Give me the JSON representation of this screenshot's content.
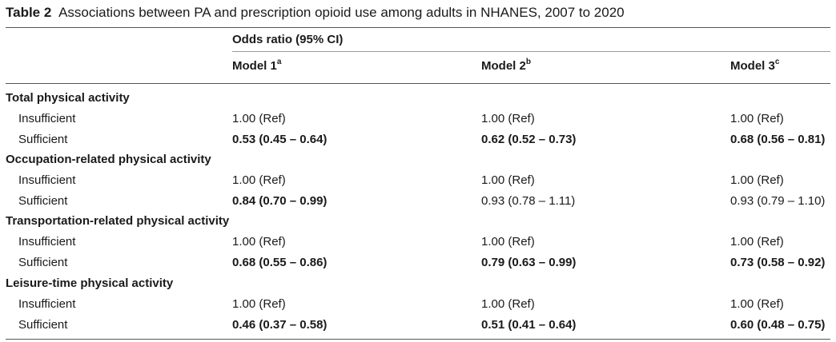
{
  "caption": {
    "label": "Table 2",
    "text": "Associations between PA and prescription opioid use among adults in NHANES, 2007 to 2020"
  },
  "header": {
    "group": "Odds ratio (95% CI)",
    "models": [
      {
        "name": "Model 1",
        "sup": "a"
      },
      {
        "name": "Model 2",
        "sup": "b"
      },
      {
        "name": "Model 3",
        "sup": "c"
      }
    ]
  },
  "sections": [
    {
      "title": "Total physical activity",
      "rows": [
        {
          "label": "Insufficient",
          "values": [
            "1.00 (Ref)",
            "1.00 (Ref)",
            "1.00 (Ref)"
          ],
          "bold": [
            false,
            false,
            false
          ]
        },
        {
          "label": "Sufficient",
          "values": [
            "0.53 (0.45 – 0.64)",
            "0.62 (0.52 – 0.73)",
            "0.68 (0.56 – 0.81)"
          ],
          "bold": [
            true,
            true,
            true
          ]
        }
      ]
    },
    {
      "title": "Occupation-related physical activity",
      "rows": [
        {
          "label": "Insufficient",
          "values": [
            "1.00 (Ref)",
            "1.00 (Ref)",
            "1.00 (Ref)"
          ],
          "bold": [
            false,
            false,
            false
          ]
        },
        {
          "label": "Sufficient",
          "values": [
            "0.84 (0.70 – 0.99)",
            "0.93 (0.78 – 1.11)",
            "0.93 (0.79 – 1.10)"
          ],
          "bold": [
            true,
            false,
            false
          ]
        }
      ]
    },
    {
      "title": "Transportation-related physical activity",
      "rows": [
        {
          "label": "Insufficient",
          "values": [
            "1.00 (Ref)",
            "1.00 (Ref)",
            "1.00 (Ref)"
          ],
          "bold": [
            false,
            false,
            false
          ]
        },
        {
          "label": "Sufficient",
          "values": [
            "0.68 (0.55 – 0.86)",
            "0.79 (0.63 – 0.99)",
            "0.73 (0.58 – 0.92)"
          ],
          "bold": [
            true,
            true,
            true
          ]
        }
      ]
    },
    {
      "title": "Leisure-time physical activity",
      "rows": [
        {
          "label": "Insufficient",
          "values": [
            "1.00 (Ref)",
            "1.00 (Ref)",
            "1.00 (Ref)"
          ],
          "bold": [
            false,
            false,
            false
          ]
        },
        {
          "label": "Sufficient",
          "values": [
            "0.46 (0.37 – 0.58)",
            "0.51 (0.41 – 0.64)",
            "0.60 (0.48 – 0.75)"
          ],
          "bold": [
            true,
            true,
            true
          ]
        }
      ]
    }
  ]
}
